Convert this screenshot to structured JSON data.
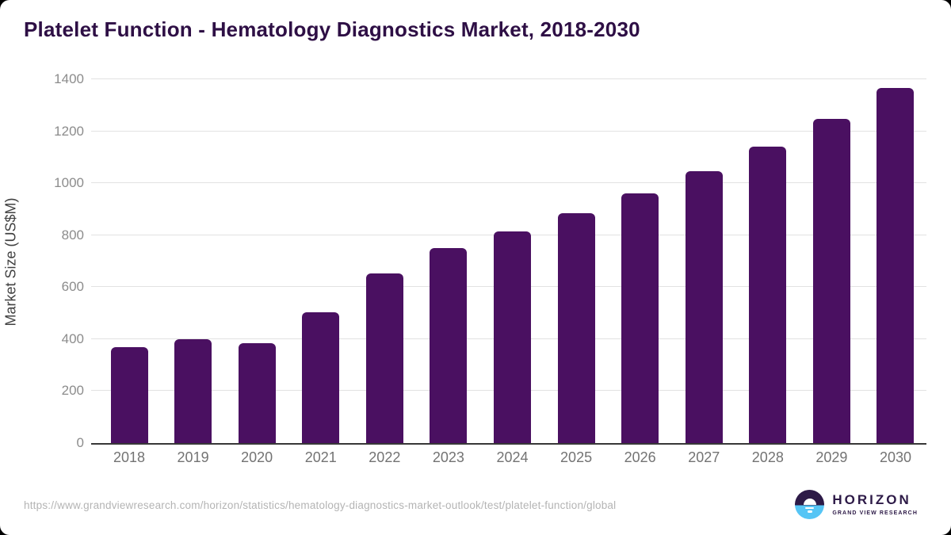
{
  "header": {
    "title": "Platelet Function - Hematology Diagnostics Market, 2018-2030"
  },
  "chart_data": {
    "type": "bar",
    "title": "Platelet Function - Hematology Diagnostics Market, 2018-2030",
    "categories": [
      "2018",
      "2019",
      "2020",
      "2021",
      "2022",
      "2023",
      "2024",
      "2025",
      "2026",
      "2027",
      "2028",
      "2029",
      "2030"
    ],
    "values": [
      370,
      401,
      384,
      502,
      653,
      749,
      814,
      884,
      960,
      1046,
      1140,
      1247,
      1365
    ],
    "xlabel": "",
    "ylabel": "Market Size (US$M)",
    "ylim": [
      0,
      1400
    ],
    "yticks": [
      0,
      200,
      400,
      600,
      800,
      1000,
      1200,
      1400
    ],
    "grid": true,
    "legend_position": "none",
    "bar_color": "#4a1061"
  },
  "footer": {
    "source_url": "https://www.grandviewresearch.com/horizon/statistics/hematology-diagnostics-market-outlook/test/platelet-function/global",
    "logo": {
      "name": "HORIZON",
      "subtitle": "GRAND VIEW RESEARCH"
    }
  },
  "colors": {
    "bar": "#4a1061",
    "title": "#2e0f45",
    "gridline": "#e2e2e2",
    "axis_line": "#383838",
    "tick_label": "#8c8c8c",
    "x_label": "#737373",
    "axis_title": "#414141",
    "source_text": "#b4b4b4",
    "logo_dark": "#2d1a47",
    "logo_blue": "#56c5f5"
  }
}
